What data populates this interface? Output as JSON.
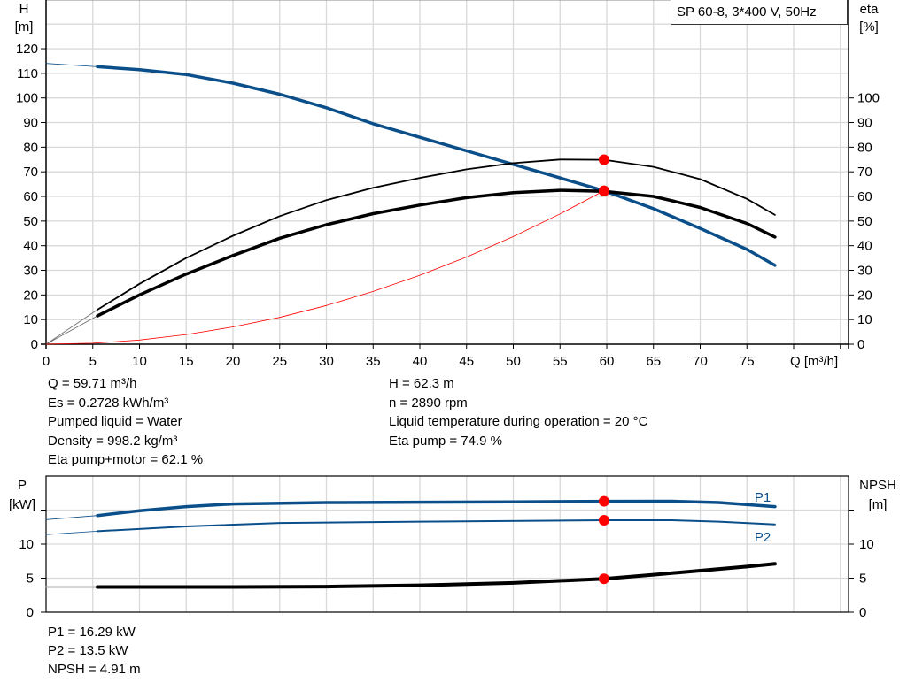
{
  "title": "SP 60-8, 3*400 V, 50Hz",
  "colors": {
    "head": "#0b4f8a",
    "eta": "#000000",
    "system": "#ff0000",
    "duty_point": "#ff0000",
    "grid": "#d9d9d9",
    "power": "#0b4f8a",
    "npsh": "#000000"
  },
  "readouts": {
    "left": [
      "Q = 59.71 m³/h",
      "Es = 0.2728 kWh/m³",
      "Pumped liquid = Water",
      "Density = 998.2 kg/m³",
      "Eta pump+motor = 62.1 %"
    ],
    "right": [
      "H = 62.3 m",
      "n = 2890 rpm",
      "Liquid temperature during operation = 20 °C",
      "Eta pump = 74.9 %"
    ],
    "bottom": [
      "P1 = 16.29 kW",
      "P2 = 13.5 kW",
      "NPSH = 4.91 m"
    ]
  },
  "chart_data": [
    {
      "type": "line",
      "xlabel": "Q [m³/h]",
      "ylabel_left": [
        "H",
        "[m]"
      ],
      "ylabel_right": [
        "eta",
        "[%]"
      ],
      "xlim": [
        0,
        85
      ],
      "ylim": [
        0,
        140
      ],
      "xticks": [
        0,
        5,
        10,
        15,
        20,
        25,
        30,
        35,
        40,
        45,
        50,
        55,
        60,
        65,
        70,
        75
      ],
      "yticks_left": [
        0,
        10,
        20,
        30,
        40,
        50,
        60,
        70,
        80,
        90,
        100,
        110,
        120
      ],
      "yticks_right": [
        0,
        10,
        20,
        30,
        40,
        50,
        60,
        70,
        80,
        90,
        100
      ],
      "grid": true,
      "series": [
        {
          "key": "head",
          "x": [
            5.5,
            10,
            15,
            20,
            25,
            30,
            35,
            40,
            45,
            50,
            55,
            59.71,
            65,
            70,
            75,
            78
          ],
          "y": [
            112.7,
            111.5,
            109.5,
            106,
            101.5,
            96,
            89.5,
            84,
            78.5,
            73,
            67.5,
            62.3,
            55,
            47,
            38.5,
            32
          ],
          "extrapolated": {
            "x": [
              0,
              5.5
            ],
            "y": [
              114,
              112.7
            ]
          }
        },
        {
          "key": "eta_pump",
          "x": [
            5.5,
            10,
            15,
            20,
            25,
            30,
            35,
            40,
            45,
            50,
            55,
            59.71,
            65,
            70,
            75,
            78
          ],
          "y": [
            14,
            24.5,
            35,
            44,
            52,
            58.5,
            63.5,
            67.5,
            71,
            73.5,
            75,
            74.9,
            72,
            67,
            59,
            52.5
          ],
          "extrapolated": {
            "x": [
              0,
              5.5
            ],
            "y": [
              0,
              14
            ]
          }
        },
        {
          "key": "eta_pump_motor",
          "x": [
            5.5,
            10,
            15,
            20,
            25,
            30,
            35,
            40,
            45,
            50,
            55,
            59.71,
            65,
            70,
            75,
            78
          ],
          "y": [
            11.5,
            20,
            28.5,
            36,
            43,
            48.5,
            53,
            56.5,
            59.5,
            61.5,
            62.5,
            62.1,
            60,
            55.5,
            49,
            43.5
          ],
          "extrapolated": {
            "x": [
              0,
              5.5
            ],
            "y": [
              0,
              11.5
            ]
          }
        },
        {
          "key": "system",
          "x": [
            0,
            5,
            10,
            15,
            20,
            25,
            30,
            35,
            40,
            45,
            50,
            55,
            59.71
          ],
          "y": [
            0,
            0.4,
            1.7,
            3.9,
            7,
            10.9,
            15.7,
            21.4,
            28,
            35.4,
            43.7,
            52.9,
            62.3
          ]
        }
      ],
      "duty_points": [
        {
          "x": 59.71,
          "y": 74.9
        },
        {
          "x": 59.71,
          "y": 62.3
        },
        {
          "x": 59.71,
          "y": 62.1
        }
      ]
    },
    {
      "type": "line",
      "ylabel_left": [
        "P",
        "[kW]"
      ],
      "ylabel_right": [
        "NPSH",
        "[m]"
      ],
      "xlim": [
        0,
        85
      ],
      "ylim": [
        0,
        20
      ],
      "yticks_left": [
        0,
        5,
        10
      ],
      "yticks_right": [
        0,
        5,
        10
      ],
      "grid": true,
      "series": [
        {
          "key": "P1",
          "name": "P1",
          "x": [
            5.5,
            10,
            15,
            20,
            30,
            40,
            50,
            59.71,
            67,
            72,
            78
          ],
          "y": [
            14.2,
            14.9,
            15.5,
            15.9,
            16.1,
            16.15,
            16.2,
            16.29,
            16.3,
            16.1,
            15.5
          ],
          "extrapolated": {
            "x": [
              0,
              5.5
            ],
            "y": [
              13.6,
              14.2
            ]
          }
        },
        {
          "key": "P2",
          "name": "P2",
          "x": [
            5.5,
            15,
            25,
            40,
            59.71,
            67,
            72,
            78
          ],
          "y": [
            11.9,
            12.6,
            13.1,
            13.3,
            13.5,
            13.5,
            13.3,
            12.9
          ],
          "extrapolated": {
            "x": [
              0,
              5.5
            ],
            "y": [
              11.4,
              11.9
            ]
          }
        },
        {
          "key": "NPSH",
          "x": [
            5.5,
            20,
            30,
            40,
            50,
            59.71,
            65,
            70,
            75,
            78
          ],
          "y": [
            3.7,
            3.7,
            3.75,
            3.95,
            4.3,
            4.91,
            5.5,
            6.1,
            6.7,
            7.1
          ],
          "extrapolated": {
            "x": [
              0,
              5.5
            ],
            "y": [
              3.7,
              3.7
            ]
          }
        }
      ],
      "duty_points": [
        {
          "x": 59.71,
          "y": 16.29
        },
        {
          "x": 59.71,
          "y": 13.5
        },
        {
          "x": 59.71,
          "y": 4.91
        }
      ]
    }
  ]
}
